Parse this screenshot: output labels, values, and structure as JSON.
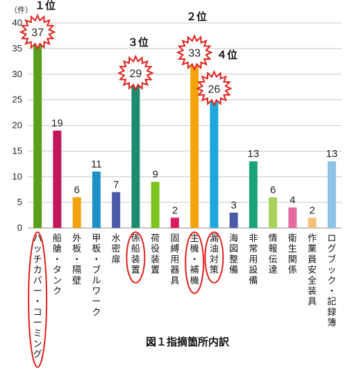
{
  "chart_data": {
    "type": "bar",
    "title": "図１指摘箇所内訳",
    "y_unit_label": "（件）",
    "ylim": [
      0,
      40
    ],
    "yticks": [
      "0",
      "5",
      "10",
      "15",
      "20",
      "25",
      "30",
      "35",
      "40"
    ],
    "grid": true,
    "categories": [
      "ハッチカバー・コーミング",
      "船艙・タンク",
      "外板・隔壁",
      "甲板・ブルワーク",
      "水密扉",
      "係船装置",
      "荷役装置",
      "固縛用器具",
      "主機・補機",
      "漏油対策",
      "海図整備",
      "非常用設備",
      "情報伝達",
      "衛生関係",
      "作業員安全装具",
      "ログブック・記録簿"
    ],
    "values": [
      37,
      19,
      6,
      11,
      7,
      29,
      9,
      2,
      33,
      26,
      3,
      13,
      6,
      4,
      2,
      13
    ],
    "value_labels": [
      "37",
      "19",
      "6",
      "11",
      "7",
      "29",
      "9",
      "2",
      "33",
      "26",
      "3",
      "13",
      "6",
      "4",
      "2",
      "13"
    ],
    "colors": [
      "#5a9e1c",
      "#c2185b",
      "#f2a20c",
      "#1e90c8",
      "#4a5aa8",
      "#1e8a6e",
      "#7ac41e",
      "#d81b60",
      "#f5a30a",
      "#1ea7dc",
      "#4a5aa8",
      "#1aa37a",
      "#a8d05a",
      "#e56aa0",
      "#f5c07a",
      "#8ec3e6"
    ],
    "highlights": [
      {
        "category_index": 0,
        "rank_label": "１位"
      },
      {
        "category_index": 5,
        "rank_label": "３位"
      },
      {
        "category_index": 8,
        "rank_label": "２位"
      },
      {
        "category_index": 9,
        "rank_label": "４位"
      }
    ],
    "highlight_color": "#e0201c"
  }
}
